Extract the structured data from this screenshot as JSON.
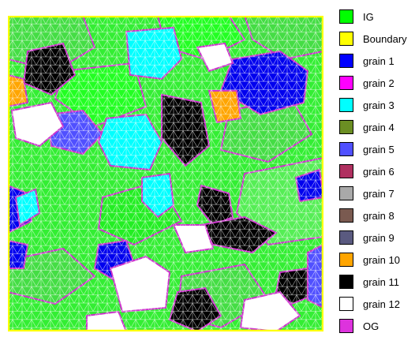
{
  "legend": [
    {
      "label": "IG",
      "color": "#00ff00"
    },
    {
      "label": "Boundary",
      "color": "#ffff00"
    },
    {
      "label": "grain 1",
      "color": "#0000ff"
    },
    {
      "label": "grain 2",
      "color": "#ff00ff"
    },
    {
      "label": "grain 3",
      "color": "#00ffff"
    },
    {
      "label": "grain 4",
      "color": "#6b8e23"
    },
    {
      "label": "grain 5",
      "color": "#5050ff"
    },
    {
      "label": "grain 6",
      "color": "#b03060"
    },
    {
      "label": "grain 7",
      "color": "#a9a9a9"
    },
    {
      "label": "grain 8",
      "color": "#7a5a50"
    },
    {
      "label": "grain 9",
      "color": "#5a5a80"
    },
    {
      "label": "grain 10",
      "color": "#ffa500"
    },
    {
      "label": "grain 11",
      "color": "#000000"
    },
    {
      "label": "grain 12",
      "color": "#ffffff"
    },
    {
      "label": "OG",
      "color": "#dd33dd"
    }
  ],
  "mesh": {
    "background_color": "#33ee33",
    "boundary_color": "#ffff00",
    "grain_outline_color": "#cc33cc",
    "mesh_line_color": "#ffffff"
  }
}
